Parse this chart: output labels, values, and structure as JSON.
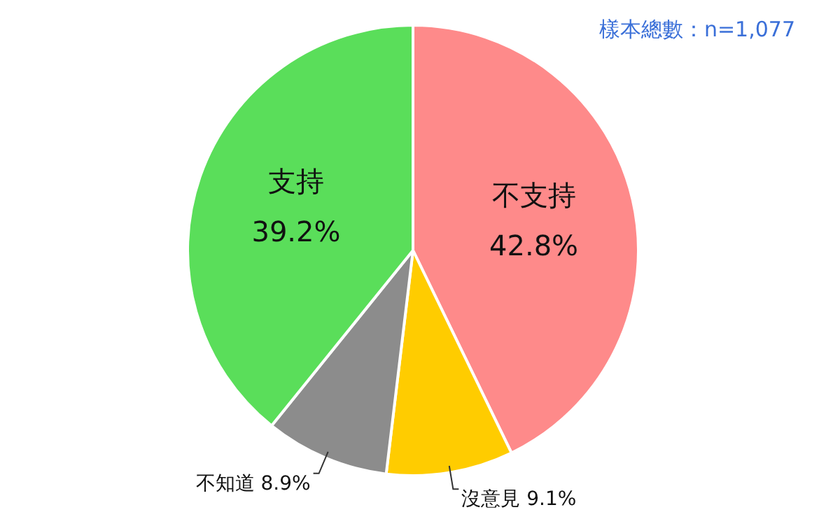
{
  "chart_data": {
    "type": "pie",
    "categories": [
      "不支持",
      "沒意見",
      "不知道",
      "支持"
    ],
    "values": [
      42.8,
      9.1,
      8.9,
      39.2
    ],
    "value_labels": [
      "42.8%",
      "9.1%",
      "8.9%",
      "39.2%"
    ],
    "colors": [
      "#fe8a8a",
      "#ffcc00",
      "#8c8c8c",
      "#5ade5a"
    ],
    "annotations": [
      "樣本總數：n=1,077"
    ],
    "legend": false
  }
}
